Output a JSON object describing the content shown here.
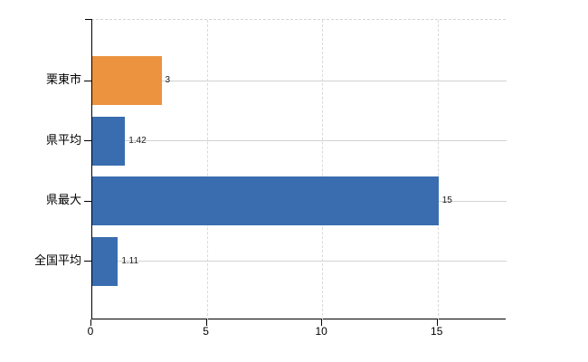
{
  "chart_data": {
    "type": "bar",
    "orientation": "horizontal",
    "title": "",
    "xlabel": "",
    "ylabel": "",
    "categories": [
      "栗東市",
      "県平均",
      "県最大",
      "全国平均"
    ],
    "values": [
      3,
      1.42,
      15,
      1.11
    ],
    "value_labels": [
      "3",
      "1.42",
      "15",
      "1.11"
    ],
    "bar_colors": [
      "#EC9340",
      "#3A6DAF",
      "#3A6DAF",
      "#3A6DAF"
    ],
    "x_ticks": [
      0,
      5,
      10,
      15
    ],
    "x_tick_labels": [
      "0",
      "5",
      "10",
      "15"
    ],
    "xlim": [
      0,
      17.95
    ],
    "grid": "vertical-dashed",
    "legend": "none",
    "colors": {
      "accent_orange": "#EC9340",
      "accent_blue": "#3A6DAF",
      "gridline": "#d9d9d9",
      "category_line": "#d2d4d0",
      "axis": "#000000",
      "background": "#ffffff",
      "text": "#000000"
    }
  }
}
